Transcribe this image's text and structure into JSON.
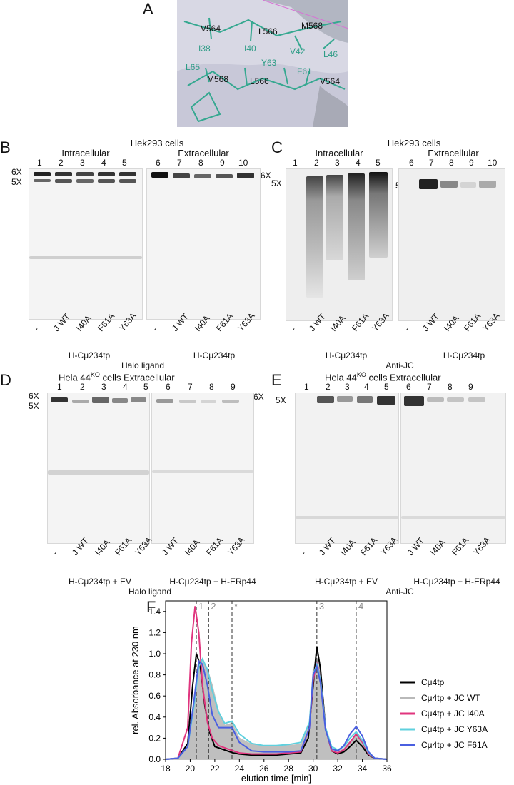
{
  "panelA": {
    "letter": "A",
    "labels": [
      "V564",
      "L566",
      "M568",
      "I38",
      "I40",
      "V42",
      "L46",
      "L65",
      "Y63",
      "F61",
      "M568",
      "L566",
      "V564"
    ]
  },
  "panelB": {
    "letter": "B",
    "cells": "Hek293 cells",
    "intra": "Intracellular",
    "extra": "Extracellular",
    "lanes": [
      "1",
      "2",
      "3",
      "4",
      "5",
      "6",
      "7",
      "8",
      "9",
      "10"
    ],
    "markers": {
      "six": "6X",
      "five": "5X",
      "six_right": "6X"
    },
    "lane_labels": [
      "-",
      "J WT",
      "I40A",
      "F61A",
      "Y63A"
    ],
    "construct": "H-Cμ234tp",
    "construct2": "H-Cμ234tp",
    "stain": "Halo ligand"
  },
  "panelC": {
    "letter": "C",
    "cells": "Hek293 cells",
    "intra": "Intracellular",
    "extra": "Extracellular",
    "lanes": [
      "1",
      "2",
      "3",
      "4",
      "5",
      "6",
      "7",
      "8",
      "9",
      "10"
    ],
    "markers": {
      "five": "5X",
      "star": "*",
      "five_right": "5X"
    },
    "lane_labels": [
      "-",
      "J WT",
      "I40A",
      "F61A",
      "Y63A"
    ],
    "construct": "H-Cμ234tp",
    "construct2": "H-Cμ234tp",
    "stain": "Anti-JC"
  },
  "panelD": {
    "letter": "D",
    "title_pre": "Hela 44",
    "title_sup": "KO",
    "title_post": " cells Extracellular",
    "lanes": [
      "1",
      "2",
      "3",
      "4",
      "5",
      "6",
      "7",
      "8",
      "9"
    ],
    "markers": {
      "six": "6X",
      "five": "5X",
      "six_right": "6X"
    },
    "lane_labels_left": [
      "-",
      "J WT",
      "I40A",
      "F61A",
      "Y63A"
    ],
    "lane_labels_right": [
      "J WT",
      "I40A",
      "F61A",
      "Y63A"
    ],
    "construct_left": "H-Cμ234tp + EV",
    "construct_right": "H-Cμ234tp + H-ERp44",
    "stain": "Halo ligand"
  },
  "panelE": {
    "letter": "E",
    "title_pre": "Hela 44",
    "title_sup": "KO",
    "title_post": " cells Extracellular",
    "lanes": [
      "1",
      "2",
      "3",
      "4",
      "5",
      "6",
      "7",
      "8",
      "9"
    ],
    "markers": {
      "five": "5X"
    },
    "lane_labels_left": [
      "-",
      "J WT",
      "I40A",
      "F61A",
      "Y63A"
    ],
    "lane_labels_right": [
      "J WT",
      "I40A",
      "F61A",
      "Y63A"
    ],
    "construct_left": "H-Cμ234tp + EV",
    "construct_right": "H-Cμ234tp + H-ERp44",
    "stain": "Anti-JC"
  },
  "panelF": {
    "letter": "F",
    "chart_data": {
      "type": "line",
      "xlabel": "elution time [min]",
      "ylabel": "rel. Absorbance at 230 nm",
      "xlim": [
        18,
        36
      ],
      "ylim": [
        0,
        1.5
      ],
      "xticks": [
        18,
        20,
        22,
        24,
        26,
        28,
        30,
        32,
        34,
        36
      ],
      "yticks": [
        0.0,
        0.2,
        0.4,
        0.6,
        0.8,
        1.0,
        1.2,
        1.4
      ],
      "peak_markers": [
        {
          "label": "1",
          "x": 20.5
        },
        {
          "label": "2",
          "x": 21.5
        },
        {
          "label": "*",
          "x": 23.4
        },
        {
          "label": "3",
          "x": 30.3
        },
        {
          "label": "4",
          "x": 33.5
        }
      ],
      "series": [
        {
          "name": "Cμ4tp",
          "color": "#000000",
          "x": [
            18,
            19,
            19.8,
            20.2,
            20.5,
            20.8,
            21.2,
            21.6,
            22,
            22.5,
            23,
            23.5,
            24,
            25,
            26,
            27,
            28,
            29,
            29.6,
            30,
            30.3,
            30.6,
            31,
            31.5,
            32,
            32.5,
            33,
            33.5,
            34,
            34.5,
            35,
            36
          ],
          "y": [
            0,
            0.01,
            0.15,
            0.7,
            1.0,
            0.9,
            0.5,
            0.25,
            0.12,
            0.1,
            0.08,
            0.06,
            0.05,
            0.04,
            0.04,
            0.04,
            0.05,
            0.06,
            0.2,
            0.7,
            1.07,
            0.85,
            0.3,
            0.08,
            0.05,
            0.07,
            0.12,
            0.18,
            0.12,
            0.04,
            0.01,
            0
          ]
        },
        {
          "name": "Cμ4tp + JC WT",
          "color": "#b9b9b9",
          "fill": true,
          "x": [
            18,
            19,
            19.8,
            20.3,
            20.7,
            21,
            21.4,
            21.8,
            22.3,
            22.8,
            23.4,
            24,
            25,
            26,
            27,
            28,
            29,
            29.7,
            30,
            30.3,
            30.6,
            31,
            31.5,
            32,
            32.5,
            33,
            33.5,
            34,
            34.5,
            35,
            36
          ],
          "y": [
            0,
            0.01,
            0.1,
            0.45,
            0.9,
            0.95,
            0.85,
            0.7,
            0.45,
            0.32,
            0.34,
            0.2,
            0.14,
            0.12,
            0.12,
            0.13,
            0.14,
            0.35,
            0.85,
            0.95,
            0.8,
            0.3,
            0.1,
            0.07,
            0.1,
            0.17,
            0.22,
            0.15,
            0.05,
            0.01,
            0
          ]
        },
        {
          "name": "Cμ4tp + JC I40A",
          "color": "#e0357e",
          "x": [
            18,
            19,
            19.8,
            20.1,
            20.4,
            20.7,
            21,
            21.4,
            21.8,
            22.3,
            23,
            23.5,
            24,
            25,
            26,
            27,
            28,
            29,
            29.7,
            30,
            30.3,
            30.6,
            31,
            31.5,
            32,
            32.5,
            33,
            33.5,
            34,
            34.5,
            35,
            36
          ],
          "y": [
            0,
            0.01,
            0.3,
            1.1,
            1.45,
            1.2,
            0.7,
            0.35,
            0.2,
            0.13,
            0.1,
            0.08,
            0.06,
            0.05,
            0.05,
            0.05,
            0.06,
            0.07,
            0.3,
            0.75,
            0.92,
            0.75,
            0.3,
            0.08,
            0.06,
            0.09,
            0.16,
            0.24,
            0.16,
            0.05,
            0.01,
            0
          ]
        },
        {
          "name": "Cμ4tp + JC Y63A",
          "color": "#5fd0de",
          "x": [
            18,
            19,
            19.8,
            20.3,
            20.7,
            21,
            21.4,
            21.8,
            22.3,
            22.8,
            23.4,
            24,
            25,
            26,
            27,
            28,
            29,
            29.7,
            30,
            30.3,
            30.6,
            31,
            31.5,
            32,
            32.5,
            33,
            33.5,
            34,
            34.5,
            35,
            36
          ],
          "y": [
            0,
            0.01,
            0.12,
            0.5,
            0.88,
            0.95,
            0.85,
            0.65,
            0.45,
            0.34,
            0.36,
            0.24,
            0.15,
            0.13,
            0.13,
            0.14,
            0.16,
            0.35,
            0.8,
            0.9,
            0.75,
            0.3,
            0.12,
            0.09,
            0.12,
            0.2,
            0.26,
            0.18,
            0.06,
            0.01,
            0
          ]
        },
        {
          "name": "Cμ4tp + JC F61A",
          "color": "#4a5fe0",
          "x": [
            18,
            19,
            19.8,
            20.3,
            20.7,
            21,
            21.4,
            21.8,
            22.3,
            22.8,
            23.4,
            24,
            25,
            26,
            27,
            28,
            29,
            29.7,
            30,
            30.3,
            30.6,
            31,
            31.5,
            32,
            32.5,
            33,
            33.5,
            34,
            34.5,
            35,
            36
          ],
          "y": [
            0,
            0.01,
            0.12,
            0.55,
            0.93,
            0.9,
            0.7,
            0.42,
            0.3,
            0.3,
            0.3,
            0.16,
            0.08,
            0.07,
            0.07,
            0.07,
            0.08,
            0.3,
            0.8,
            0.88,
            0.72,
            0.28,
            0.1,
            0.08,
            0.13,
            0.24,
            0.31,
            0.22,
            0.07,
            0.01,
            0
          ]
        }
      ],
      "legend_placement": "right"
    }
  }
}
